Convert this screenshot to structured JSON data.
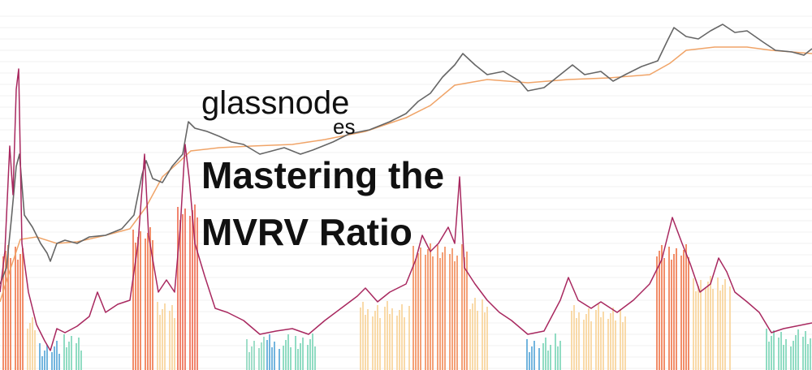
{
  "logo": {
    "brand": "glassnode",
    "locale": "es"
  },
  "title": {
    "lines": [
      "Mastering the",
      "MVRV Ratio"
    ]
  }
}
